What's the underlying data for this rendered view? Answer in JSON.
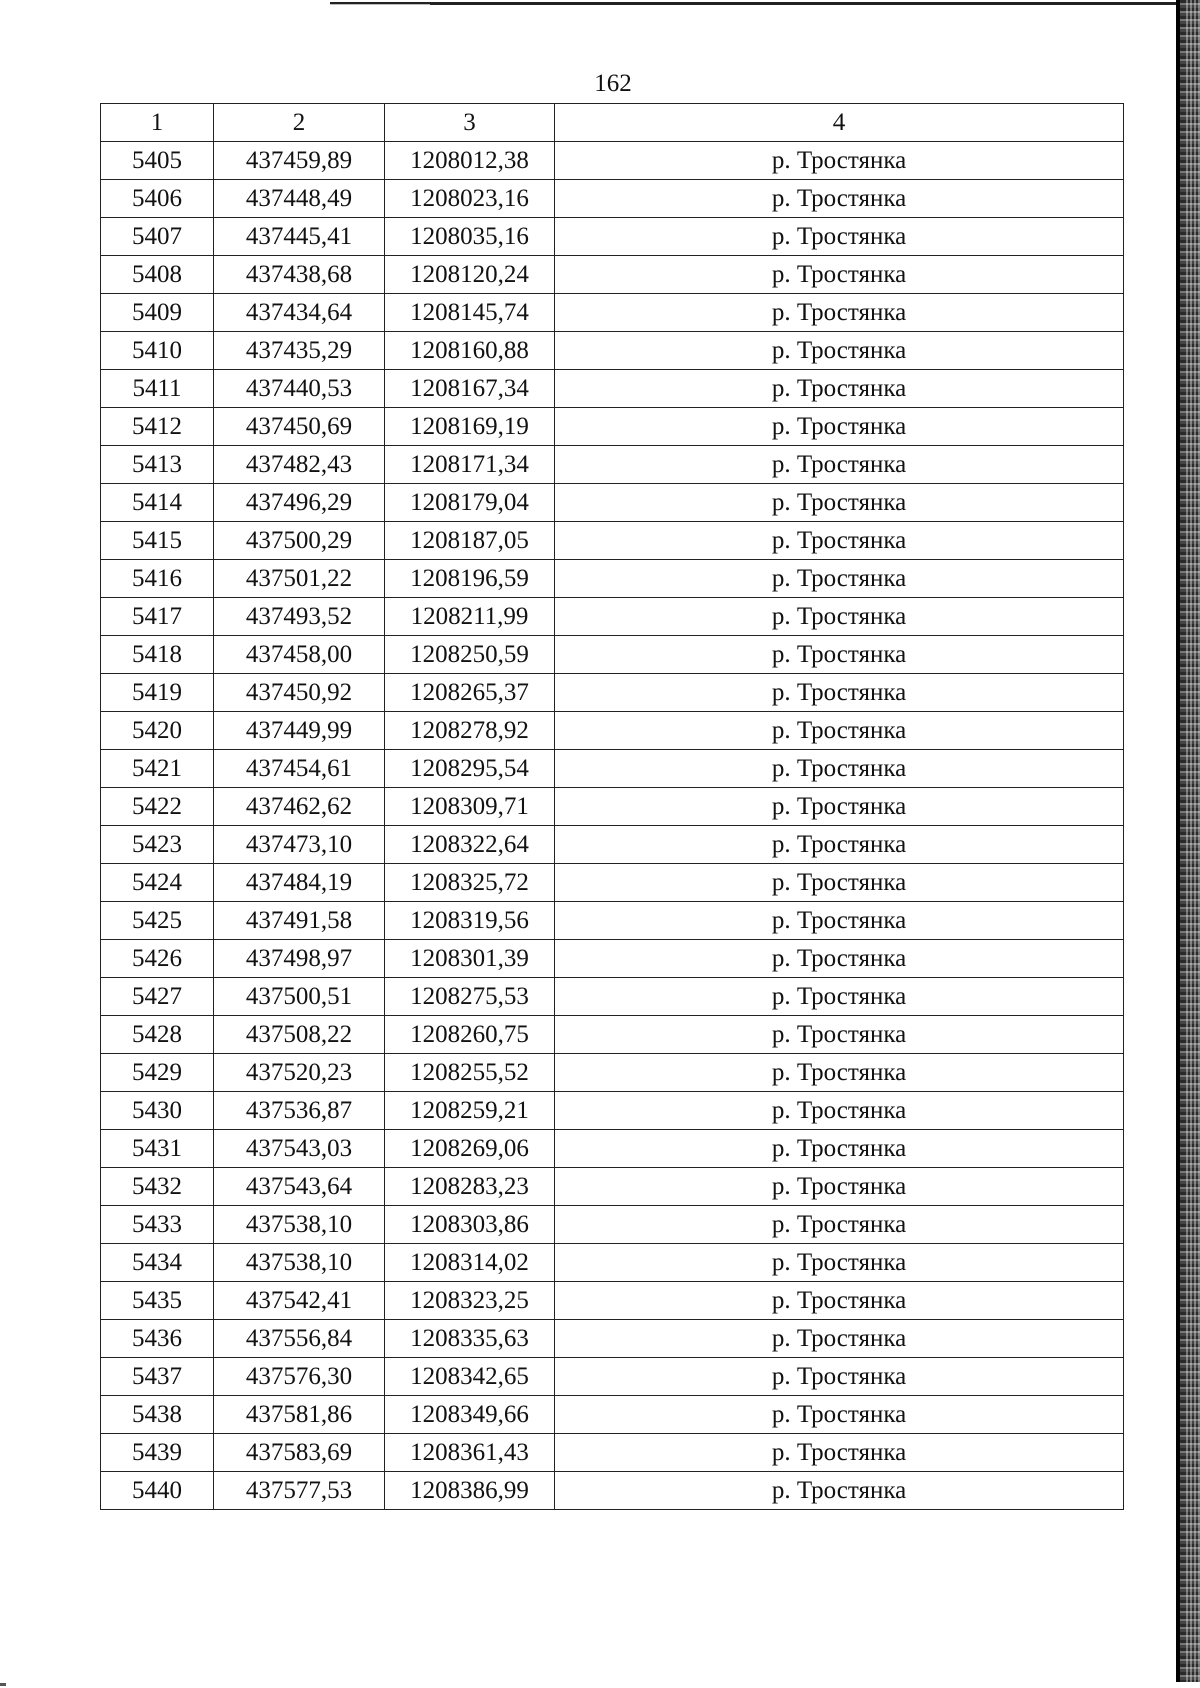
{
  "page_number": "162",
  "table": {
    "headers": [
      "1",
      "2",
      "3",
      "4"
    ],
    "rows": [
      [
        "5405",
        "437459,89",
        "1208012,38",
        "р. Тростянка"
      ],
      [
        "5406",
        "437448,49",
        "1208023,16",
        "р. Тростянка"
      ],
      [
        "5407",
        "437445,41",
        "1208035,16",
        "р. Тростянка"
      ],
      [
        "5408",
        "437438,68",
        "1208120,24",
        "р. Тростянка"
      ],
      [
        "5409",
        "437434,64",
        "1208145,74",
        "р. Тростянка"
      ],
      [
        "5410",
        "437435,29",
        "1208160,88",
        "р. Тростянка"
      ],
      [
        "5411",
        "437440,53",
        "1208167,34",
        "р. Тростянка"
      ],
      [
        "5412",
        "437450,69",
        "1208169,19",
        "р. Тростянка"
      ],
      [
        "5413",
        "437482,43",
        "1208171,34",
        "р. Тростянка"
      ],
      [
        "5414",
        "437496,29",
        "1208179,04",
        "р. Тростянка"
      ],
      [
        "5415",
        "437500,29",
        "1208187,05",
        "р. Тростянка"
      ],
      [
        "5416",
        "437501,22",
        "1208196,59",
        "р. Тростянка"
      ],
      [
        "5417",
        "437493,52",
        "1208211,99",
        "р. Тростянка"
      ],
      [
        "5418",
        "437458,00",
        "1208250,59",
        "р. Тростянка"
      ],
      [
        "5419",
        "437450,92",
        "1208265,37",
        "р. Тростянка"
      ],
      [
        "5420",
        "437449,99",
        "1208278,92",
        "р. Тростянка"
      ],
      [
        "5421",
        "437454,61",
        "1208295,54",
        "р. Тростянка"
      ],
      [
        "5422",
        "437462,62",
        "1208309,71",
        "р. Тростянка"
      ],
      [
        "5423",
        "437473,10",
        "1208322,64",
        "р. Тростянка"
      ],
      [
        "5424",
        "437484,19",
        "1208325,72",
        "р. Тростянка"
      ],
      [
        "5425",
        "437491,58",
        "1208319,56",
        "р. Тростянка"
      ],
      [
        "5426",
        "437498,97",
        "1208301,39",
        "р. Тростянка"
      ],
      [
        "5427",
        "437500,51",
        "1208275,53",
        "р. Тростянка"
      ],
      [
        "5428",
        "437508,22",
        "1208260,75",
        "р. Тростянка"
      ],
      [
        "5429",
        "437520,23",
        "1208255,52",
        "р. Тростянка"
      ],
      [
        "5430",
        "437536,87",
        "1208259,21",
        "р. Тростянка"
      ],
      [
        "5431",
        "437543,03",
        "1208269,06",
        "р. Тростянка"
      ],
      [
        "5432",
        "437543,64",
        "1208283,23",
        "р. Тростянка"
      ],
      [
        "5433",
        "437538,10",
        "1208303,86",
        "р. Тростянка"
      ],
      [
        "5434",
        "437538,10",
        "1208314,02",
        "р. Тростянка"
      ],
      [
        "5435",
        "437542,41",
        "1208323,25",
        "р. Тростянка"
      ],
      [
        "5436",
        "437556,84",
        "1208335,63",
        "р. Тростянка"
      ],
      [
        "5437",
        "437576,30",
        "1208342,65",
        "р. Тростянка"
      ],
      [
        "5438",
        "437581,86",
        "1208349,66",
        "р. Тростянка"
      ],
      [
        "5439",
        "437583,69",
        "1208361,43",
        "р. Тростянка"
      ],
      [
        "5440",
        "437577,53",
        "1208386,99",
        "р. Тростянка"
      ]
    ]
  }
}
